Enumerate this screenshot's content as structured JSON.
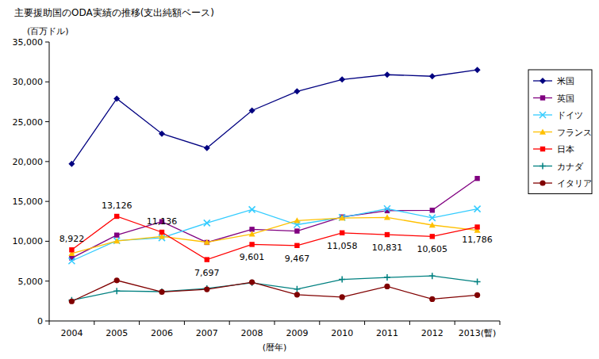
{
  "chart_data": {
    "type": "line",
    "title": "主要援助国のODA実績の推移(支出純額ベース)",
    "y_label": "(百万ドル)",
    "x_label": "(暦年)",
    "categories": [
      "2004",
      "2005",
      "2006",
      "2007",
      "2008",
      "2009",
      "2010",
      "2011",
      "2012",
      "2013(暫)"
    ],
    "ylim": [
      0,
      35000
    ],
    "yticks": [
      0,
      {
        "value": 5000,
        "label": "5,000"
      },
      {
        "value": 10000,
        "label": "10,000"
      },
      {
        "value": 15000,
        "label": "15,000"
      },
      {
        "value": 20000,
        "label": "20,000"
      },
      {
        "value": 25000,
        "label": "25,000"
      },
      {
        "value": 30000,
        "label": "30,000"
      },
      {
        "value": 35000,
        "label": "35,000"
      }
    ],
    "grid": false,
    "legend": "right",
    "series": [
      {
        "name": "米国",
        "color": "#000080",
        "marker": "diamond",
        "values": [
          19700,
          27900,
          23500,
          21700,
          26400,
          28800,
          30300,
          30900,
          30700,
          31500
        ]
      },
      {
        "name": "英国",
        "color": "#800080",
        "marker": "square",
        "values": [
          7900,
          10770,
          12460,
          9850,
          11500,
          11280,
          13050,
          13830,
          13890,
          17880
        ]
      },
      {
        "name": "ドイツ",
        "color": "#33ccff",
        "marker": "x",
        "values": [
          7530,
          10080,
          10430,
          12290,
          13980,
          12080,
          12990,
          14090,
          12940,
          14060
        ]
      },
      {
        "name": "フランス",
        "color": "#ffc000",
        "marker": "triangle",
        "values": [
          8470,
          10030,
          10600,
          9880,
          10910,
          12600,
          12920,
          12990,
          12030,
          11380
        ]
      },
      {
        "name": "日本",
        "color": "#ff0000",
        "marker": "square",
        "data_labels": true,
        "values": [
          8922,
          13126,
          11136,
          7697,
          9601,
          9467,
          11058,
          10831,
          10605,
          11786
        ],
        "value_labels": [
          "8,922",
          "13,126",
          "11,136",
          "7,697",
          "9,601",
          "9,467",
          "11,058",
          "10,831",
          "10,605",
          "11,786"
        ]
      },
      {
        "name": "カナダ",
        "color": "#008080",
        "marker": "plus",
        "values": [
          2600,
          3760,
          3680,
          4080,
          4790,
          4000,
          5210,
          5460,
          5650,
          4910
        ]
      },
      {
        "name": "イタリア",
        "color": "#800000",
        "marker": "circle",
        "values": [
          2460,
          5090,
          3640,
          3970,
          4860,
          3300,
          2990,
          4330,
          2740,
          3250
        ]
      }
    ]
  }
}
